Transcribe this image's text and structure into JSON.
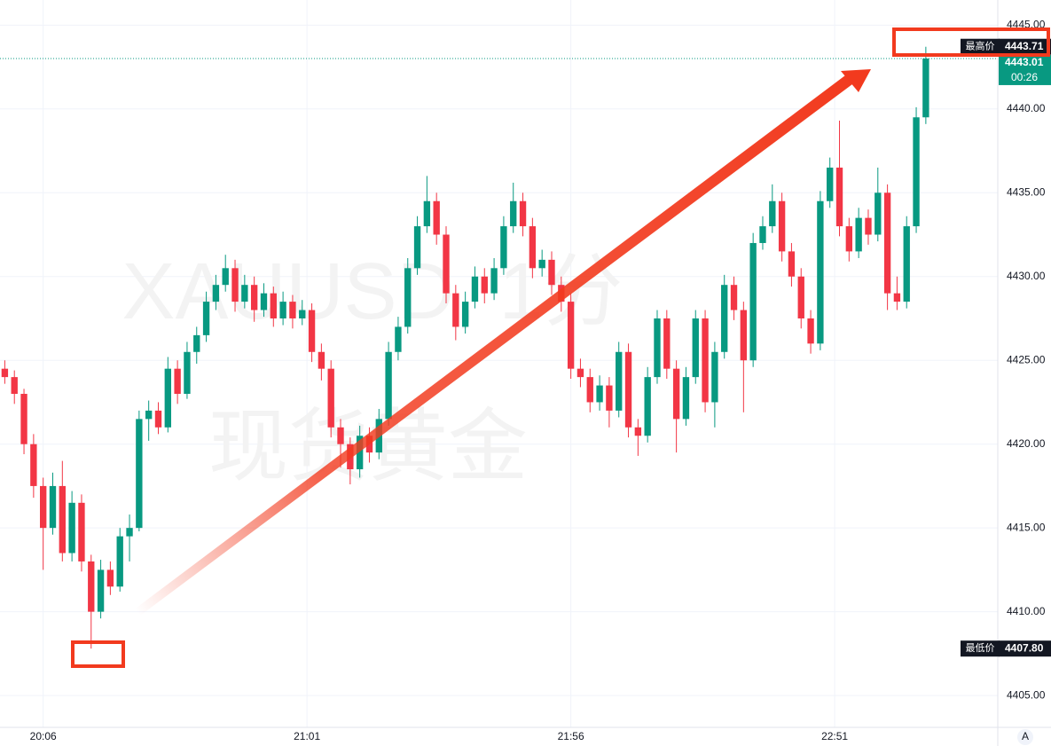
{
  "chart_data": {
    "type": "candlestick",
    "watermark": [
      "XAUUSD, 1分",
      "现货黄金"
    ],
    "up_color": "#089981",
    "down_color": "#f23645",
    "grid": true,
    "xlim": [
      "19:57",
      "23:25"
    ],
    "xticks": [
      "20:06",
      "21:01",
      "21:56",
      "22:51"
    ],
    "ylim": [
      4403.1,
      4446.5
    ],
    "yticks": [
      {
        "value": 4405,
        "label": "4405.00"
      },
      {
        "value": 4410,
        "label": "4410.00"
      },
      {
        "value": 4415,
        "label": "4415.00"
      },
      {
        "value": 4420,
        "label": "4420.00"
      },
      {
        "value": 4425,
        "label": "4425.00"
      },
      {
        "value": 4430,
        "label": "4430.00"
      },
      {
        "value": 4435,
        "label": "4435.00"
      },
      {
        "value": 4440,
        "label": "4440.00"
      },
      {
        "value": 4445,
        "label": "4445.00"
      }
    ],
    "high_label": "最高价",
    "high": 4443.71,
    "low_label": "最低价",
    "low": {
      "value": 4407.8,
      "label": "4407.80"
    },
    "last": 4443.01,
    "countdown": "00:26",
    "scale_button": "A",
    "x": [
      "19:58",
      "20:00",
      "20:02",
      "20:04",
      "20:06",
      "20:08",
      "20:10",
      "20:12",
      "20:14",
      "20:16",
      "20:18",
      "20:20",
      "20:22",
      "20:24",
      "20:26",
      "20:28",
      "20:30",
      "20:32",
      "20:34",
      "20:36",
      "20:38",
      "20:40",
      "20:42",
      "20:44",
      "20:46",
      "20:48",
      "20:50",
      "20:52",
      "20:54",
      "20:56",
      "20:58",
      "21:00",
      "21:02",
      "21:04",
      "21:06",
      "21:08",
      "21:10",
      "21:12",
      "21:14",
      "21:16",
      "21:18",
      "21:20",
      "21:22",
      "21:24",
      "21:26",
      "21:28",
      "21:30",
      "21:32",
      "21:34",
      "21:36",
      "21:38",
      "21:40",
      "21:42",
      "21:44",
      "21:46",
      "21:48",
      "21:50",
      "21:52",
      "21:54",
      "21:56",
      "21:58",
      "22:00",
      "22:02",
      "22:04",
      "22:06",
      "22:08",
      "22:10",
      "22:12",
      "22:14",
      "22:16",
      "22:18",
      "22:20",
      "22:22",
      "22:24",
      "22:26",
      "22:28",
      "22:30",
      "22:32",
      "22:34",
      "22:36",
      "22:38",
      "22:40",
      "22:42",
      "22:44",
      "22:46",
      "22:48",
      "22:50",
      "22:52",
      "22:54",
      "22:56",
      "22:58",
      "23:00",
      "23:02",
      "23:04",
      "23:06",
      "23:08",
      "23:10"
    ],
    "candles": [
      [
        4424.5,
        4425.0,
        4423.6,
        4424.0
      ],
      [
        4424.0,
        4424.4,
        4422.4,
        4423.0
      ],
      [
        4423.0,
        4423.3,
        4419.4,
        4420.0
      ],
      [
        4420.0,
        4420.6,
        4416.8,
        4417.5
      ],
      [
        4417.5,
        4418.0,
        4412.5,
        4415.0
      ],
      [
        4415.0,
        4418.3,
        4414.6,
        4417.5
      ],
      [
        4417.5,
        4419.0,
        4413.0,
        4413.5
      ],
      [
        4413.5,
        4417.2,
        4413.0,
        4416.5
      ],
      [
        4416.5,
        4417.0,
        4412.4,
        4413.0
      ],
      [
        4413.0,
        4413.4,
        4407.8,
        4410.0
      ],
      [
        4410.0,
        4413.1,
        4409.6,
        4412.5
      ],
      [
        4412.5,
        4413.0,
        4411.0,
        4411.5
      ],
      [
        4411.5,
        4415.0,
        4411.2,
        4414.5
      ],
      [
        4414.5,
        4415.8,
        4413.0,
        4415.0
      ],
      [
        4415.0,
        4422.0,
        4414.8,
        4421.5
      ],
      [
        4421.5,
        4422.6,
        4420.2,
        4422.0
      ],
      [
        4422.0,
        4422.5,
        4420.6,
        4421.0
      ],
      [
        4421.0,
        4425.2,
        4420.7,
        4424.5
      ],
      [
        4424.5,
        4425.0,
        4422.4,
        4423.0
      ],
      [
        4423.0,
        4426.1,
        4422.7,
        4425.5
      ],
      [
        4425.5,
        4427.0,
        4424.8,
        4426.5
      ],
      [
        4426.5,
        4429.1,
        4426.1,
        4428.5
      ],
      [
        4428.5,
        4430.1,
        4428.0,
        4429.5
      ],
      [
        4429.5,
        4431.3,
        4429.1,
        4430.5
      ],
      [
        4430.5,
        4431.0,
        4427.9,
        4428.5
      ],
      [
        4428.5,
        4430.1,
        4428.1,
        4429.5
      ],
      [
        4429.5,
        4430.0,
        4427.3,
        4428.0
      ],
      [
        4428.0,
        4429.6,
        4427.6,
        4429.0
      ],
      [
        4429.0,
        4429.4,
        4427.0,
        4427.5
      ],
      [
        4427.5,
        4429.1,
        4427.1,
        4428.5
      ],
      [
        4428.5,
        4428.9,
        4426.9,
        4427.5
      ],
      [
        4427.5,
        4428.6,
        4427.1,
        4428.0
      ],
      [
        4428.0,
        4428.4,
        4424.9,
        4425.5
      ],
      [
        4425.5,
        4426.0,
        4423.8,
        4424.5
      ],
      [
        4424.5,
        4425.0,
        4420.4,
        4421.0
      ],
      [
        4421.0,
        4421.5,
        4418.6,
        4420.0
      ],
      [
        4420.0,
        4420.4,
        4417.6,
        4418.5
      ],
      [
        4418.5,
        4421.1,
        4418.0,
        4420.5
      ],
      [
        4420.5,
        4421.0,
        4418.9,
        4419.5
      ],
      [
        4419.5,
        4422.1,
        4419.1,
        4421.5
      ],
      [
        4421.5,
        4426.1,
        4421.1,
        4425.5
      ],
      [
        4425.5,
        4427.6,
        4425.0,
        4427.0
      ],
      [
        4427.0,
        4431.1,
        4426.6,
        4430.5
      ],
      [
        4430.5,
        4433.6,
        4430.1,
        4433.0
      ],
      [
        4433.0,
        4436.0,
        4432.6,
        4434.5
      ],
      [
        4434.5,
        4435.0,
        4431.9,
        4432.5
      ],
      [
        4432.5,
        4433.0,
        4428.4,
        4429.0
      ],
      [
        4429.0,
        4429.5,
        4426.2,
        4427.0
      ],
      [
        4427.0,
        4429.1,
        4426.6,
        4428.5
      ],
      [
        4428.5,
        4430.6,
        4428.1,
        4430.0
      ],
      [
        4430.0,
        4430.5,
        4428.4,
        4429.0
      ],
      [
        4429.0,
        4431.1,
        4428.6,
        4430.5
      ],
      [
        4430.5,
        4433.6,
        4430.1,
        4433.0
      ],
      [
        4433.0,
        4435.6,
        4432.6,
        4434.5
      ],
      [
        4434.5,
        4435.0,
        4432.4,
        4433.0
      ],
      [
        4433.0,
        4433.5,
        4429.9,
        4430.5
      ],
      [
        4430.5,
        4431.6,
        4430.0,
        4431.0
      ],
      [
        4431.0,
        4431.5,
        4428.9,
        4429.5
      ],
      [
        4429.5,
        4430.0,
        4427.9,
        4428.5
      ],
      [
        4428.5,
        4429.0,
        4423.9,
        4424.5
      ],
      [
        4424.5,
        4425.1,
        4423.4,
        4424.0
      ],
      [
        4424.0,
        4424.5,
        4421.9,
        4422.5
      ],
      [
        4422.5,
        4424.1,
        4422.0,
        4423.5
      ],
      [
        4423.5,
        4424.0,
        4421.0,
        4422.0
      ],
      [
        4422.0,
        4426.1,
        4421.6,
        4425.5
      ],
      [
        4425.5,
        4426.0,
        4420.4,
        4421.0
      ],
      [
        4421.0,
        4421.5,
        4419.3,
        4420.5
      ],
      [
        4420.5,
        4424.6,
        4420.1,
        4424.0
      ],
      [
        4424.0,
        4428.0,
        4423.6,
        4427.5
      ],
      [
        4427.5,
        4428.0,
        4423.9,
        4424.5
      ],
      [
        4424.5,
        4425.0,
        4419.5,
        4421.5
      ],
      [
        4421.5,
        4424.6,
        4421.1,
        4424.0
      ],
      [
        4424.0,
        4428.0,
        4423.6,
        4427.5
      ],
      [
        4427.5,
        4428.0,
        4421.9,
        4422.5
      ],
      [
        4422.5,
        4426.1,
        4421.0,
        4425.5
      ],
      [
        4425.5,
        4430.1,
        4425.1,
        4429.5
      ],
      [
        4429.5,
        4430.0,
        4427.4,
        4428.0
      ],
      [
        4428.0,
        4428.5,
        4421.9,
        4425.0
      ],
      [
        4425.0,
        4432.6,
        4424.6,
        4432.0
      ],
      [
        4432.0,
        4433.6,
        4431.6,
        4433.0
      ],
      [
        4433.0,
        4435.5,
        4432.6,
        4434.5
      ],
      [
        4434.5,
        4435.0,
        4430.9,
        4431.5
      ],
      [
        4431.5,
        4432.0,
        4429.4,
        4430.0
      ],
      [
        4430.0,
        4430.5,
        4426.9,
        4427.5
      ],
      [
        4427.5,
        4428.0,
        4425.4,
        4426.0
      ],
      [
        4426.0,
        4435.1,
        4425.6,
        4434.5
      ],
      [
        4434.5,
        4437.1,
        4434.1,
        4436.5
      ],
      [
        4436.5,
        4439.3,
        4432.4,
        4433.0
      ],
      [
        4433.0,
        4433.5,
        4430.9,
        4431.5
      ],
      [
        4431.5,
        4434.1,
        4431.1,
        4433.5
      ],
      [
        4433.5,
        4434.0,
        4431.9,
        4432.5
      ],
      [
        4432.5,
        4436.5,
        4432.1,
        4435.0
      ],
      [
        4435.0,
        4435.5,
        4428.0,
        4429.0
      ],
      [
        4429.0,
        4430.0,
        4428.0,
        4428.5
      ],
      [
        4428.5,
        4433.6,
        4428.1,
        4433.0
      ],
      [
        4433.0,
        4440.1,
        4432.6,
        4439.5
      ],
      [
        4439.5,
        4443.71,
        4439.1,
        4443.01
      ]
    ]
  }
}
